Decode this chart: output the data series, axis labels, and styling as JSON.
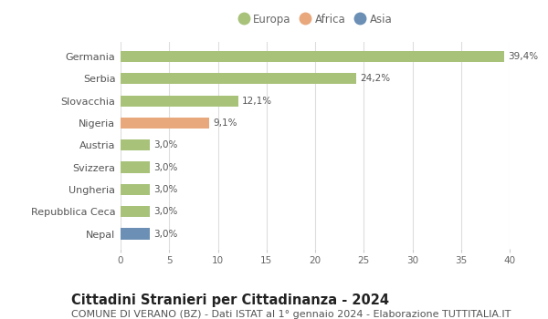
{
  "categories": [
    "Germania",
    "Serbia",
    "Slovacchia",
    "Nigeria",
    "Austria",
    "Svizzera",
    "Ungheria",
    "Repubblica Ceca",
    "Nepal"
  ],
  "values": [
    39.4,
    24.2,
    12.1,
    9.1,
    3.0,
    3.0,
    3.0,
    3.0,
    3.0
  ],
  "labels": [
    "39,4%",
    "24,2%",
    "12,1%",
    "9,1%",
    "3,0%",
    "3,0%",
    "3,0%",
    "3,0%",
    "3,0%"
  ],
  "colors": [
    "#a8c27a",
    "#a8c27a",
    "#a8c27a",
    "#e8a87c",
    "#a8c27a",
    "#a8c27a",
    "#a8c27a",
    "#a8c27a",
    "#6b8fb5"
  ],
  "legend": [
    {
      "label": "Europa",
      "color": "#a8c27a"
    },
    {
      "label": "Africa",
      "color": "#e8a87c"
    },
    {
      "label": "Asia",
      "color": "#6b8fb5"
    }
  ],
  "xlim": [
    0,
    40
  ],
  "xticks": [
    0,
    5,
    10,
    15,
    20,
    25,
    30,
    35,
    40
  ],
  "title": "Cittadini Stranieri per Cittadinanza - 2024",
  "subtitle": "COMUNE DI VERANO (BZ) - Dati ISTAT al 1° gennaio 2024 - Elaborazione TUTTITALIA.IT",
  "title_fontsize": 10.5,
  "subtitle_fontsize": 8,
  "bg_color": "#ffffff",
  "grid_color": "#dddddd",
  "bar_height": 0.5
}
